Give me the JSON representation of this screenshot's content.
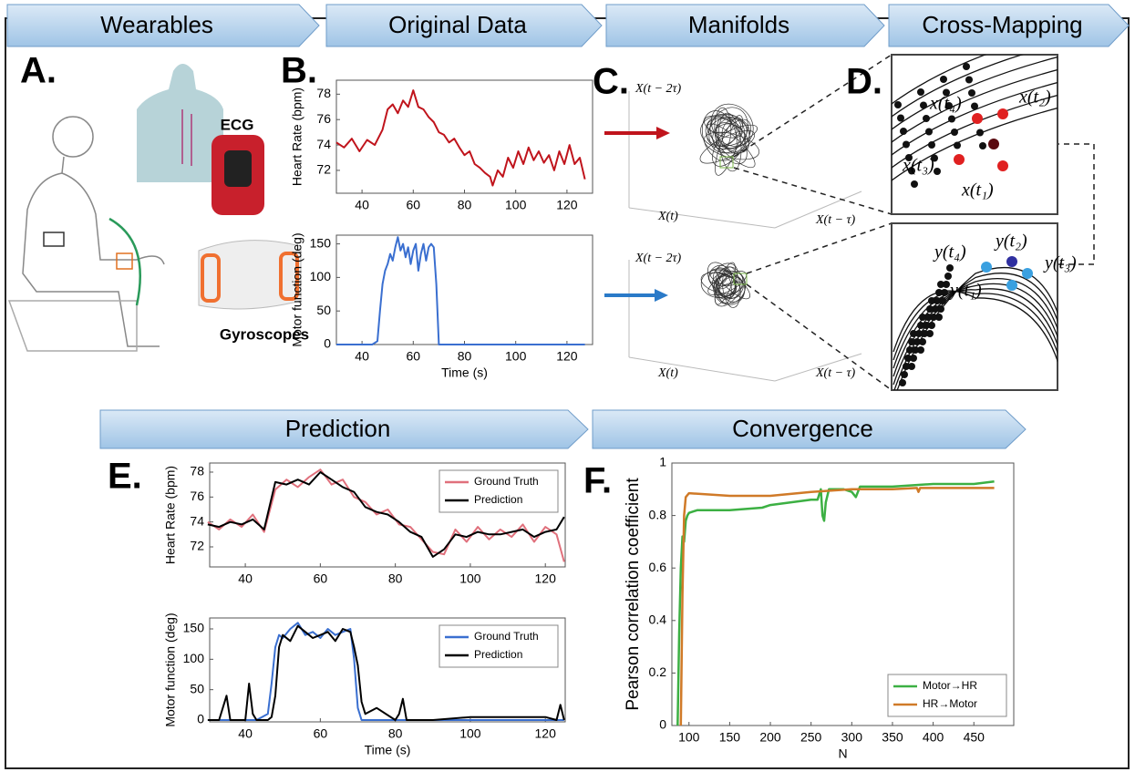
{
  "headers": [
    "Wearables",
    "Original Data",
    "Manifolds",
    "Cross-Mapping",
    "Prediction",
    "Convergence"
  ],
  "panel_labels": [
    "A.",
    "B.",
    "C.",
    "D.",
    "E.",
    "F."
  ],
  "wearables": {
    "ecg_label": "ECG",
    "gyro_label": "Gyroscopes"
  },
  "manifolds": {
    "axis_labels": [
      "X(t − 2τ)",
      "X(t)",
      "X(t − τ)",
      "X(t − 2τ)",
      "X(t)",
      "X(t − τ)"
    ]
  },
  "cross_mapping": {
    "x_labels": [
      "x(t₄)",
      "x(t₂)",
      "x(t₃)",
      "x(t₁)"
    ],
    "y_labels": [
      "y(t₄)",
      "y(t₂)",
      "y(t₃)",
      "y(t₁)"
    ]
  },
  "chart_data": [
    {
      "type": "line",
      "ylabel": "Heart Rate (bpm)",
      "x": [
        30,
        33,
        36,
        39,
        42,
        45,
        48,
        50,
        52,
        54,
        56,
        58,
        60,
        62,
        64,
        66,
        68,
        70,
        72,
        74,
        76,
        78,
        80,
        82,
        84,
        86,
        88,
        90,
        91,
        93,
        95,
        97,
        99,
        101,
        103,
        105,
        107,
        109,
        111,
        113,
        115,
        117,
        119,
        121,
        123,
        125,
        127
      ],
      "series": [
        {
          "color": "#c0141c",
          "values": [
            74.2,
            73.8,
            74.5,
            73.5,
            74.4,
            74.0,
            75.2,
            76.8,
            77.2,
            76.5,
            77.5,
            77.0,
            78.3,
            77.0,
            76.8,
            76.2,
            75.8,
            75.0,
            74.8,
            74.2,
            74.5,
            73.8,
            73.2,
            73.5,
            72.5,
            72.2,
            71.8,
            71.5,
            70.8,
            72.0,
            71.5,
            73.0,
            72.2,
            73.5,
            72.5,
            73.8,
            72.8,
            73.5,
            72.6,
            73.2,
            72.0,
            73.5,
            72.5,
            74.0,
            72.5,
            73.0,
            71.3
          ]
        }
      ],
      "xlim": [
        30,
        130
      ],
      "ylim": [
        70.2,
        79.1
      ],
      "xticks": [
        40,
        60,
        80,
        100,
        120
      ],
      "yticks": [
        72,
        74,
        76,
        78
      ]
    },
    {
      "type": "line",
      "ylabel": "Motor function (deg)",
      "xlabel": "Time (s)",
      "x": [
        30,
        44,
        46,
        47,
        48,
        49,
        50,
        51,
        52,
        53,
        54,
        55,
        56,
        57,
        58,
        59,
        60,
        61,
        62,
        63,
        64,
        65,
        66,
        67,
        68,
        69,
        70,
        127
      ],
      "series": [
        {
          "color": "#3a6fd0",
          "values": [
            0,
            0,
            5,
            50,
            90,
            110,
            120,
            135,
            125,
            145,
            160,
            140,
            150,
            130,
            145,
            120,
            140,
            150,
            110,
            135,
            150,
            125,
            145,
            150,
            145,
            90,
            0,
            0
          ]
        }
      ],
      "xlim": [
        30,
        130
      ],
      "ylim": [
        0,
        163
      ],
      "xticks": [
        40,
        60,
        80,
        100,
        120
      ],
      "yticks": [
        0,
        50,
        100,
        150
      ]
    },
    {
      "type": "line",
      "ylabel": "Heart Rate (bpm)",
      "legend": "upper right",
      "x": [
        30,
        33,
        36,
        39,
        42,
        45,
        48,
        51,
        54,
        57,
        60,
        63,
        66,
        69,
        72,
        75,
        78,
        81,
        84,
        87,
        90,
        93,
        96,
        99,
        102,
        105,
        108,
        111,
        114,
        117,
        120,
        123,
        125
      ],
      "series": [
        {
          "name": "Ground Truth",
          "color": "#e0707c",
          "values": [
            74.0,
            73.4,
            74.2,
            73.6,
            74.6,
            73.2,
            76.6,
            77.4,
            76.8,
            77.6,
            78.2,
            77.0,
            77.4,
            76.0,
            75.6,
            74.6,
            75.0,
            73.8,
            73.6,
            72.6,
            71.6,
            71.4,
            73.4,
            72.4,
            73.6,
            72.6,
            73.4,
            72.8,
            73.8,
            72.4,
            73.6,
            73.0,
            70.8
          ]
        },
        {
          "name": "Prediction",
          "color": "#000000",
          "values": [
            73.8,
            73.6,
            74.0,
            73.8,
            74.2,
            73.4,
            77.2,
            77.0,
            77.4,
            77.0,
            78.0,
            77.4,
            76.8,
            76.4,
            75.2,
            74.8,
            74.6,
            74.0,
            73.2,
            72.8,
            71.2,
            71.8,
            73.0,
            72.8,
            73.2,
            73.0,
            73.0,
            73.2,
            73.4,
            72.8,
            73.2,
            73.4,
            74.4
          ]
        }
      ],
      "xlim": [
        30.5,
        125.3
      ],
      "ylim": [
        70.39,
        78.73
      ],
      "xticks": [
        40,
        60,
        80,
        100,
        120
      ],
      "yticks": [
        72,
        74,
        76,
        78
      ]
    },
    {
      "type": "line",
      "ylabel": "Motor function (deg)",
      "xlabel": "Time (s)",
      "legend": "upper right",
      "x": [
        30,
        33,
        34,
        35,
        36,
        40,
        41,
        42,
        43,
        46,
        47,
        48,
        49,
        50,
        52,
        54,
        56,
        58,
        60,
        62,
        64,
        66,
        68,
        69,
        70,
        71,
        72,
        75,
        80,
        81,
        82,
        83,
        90,
        100,
        110,
        120,
        123,
        124,
        125
      ],
      "series": [
        {
          "name": "Ground Truth",
          "color": "#3a6fd0",
          "values": [
            0,
            0,
            0,
            0,
            0,
            0,
            0,
            0,
            0,
            10,
            60,
            120,
            140,
            135,
            150,
            160,
            140,
            145,
            135,
            150,
            140,
            145,
            150,
            100,
            20,
            0,
            0,
            0,
            0,
            0,
            0,
            0,
            0,
            0,
            0,
            0,
            0,
            0,
            0
          ]
        },
        {
          "name": "Prediction",
          "color": "#000000",
          "values": [
            0,
            0,
            20,
            40,
            0,
            0,
            60,
            10,
            0,
            0,
            5,
            40,
            120,
            140,
            130,
            155,
            145,
            135,
            140,
            145,
            130,
            150,
            145,
            120,
            90,
            30,
            10,
            20,
            0,
            10,
            35,
            0,
            0,
            5,
            5,
            5,
            0,
            25,
            0
          ]
        }
      ],
      "xlim": [
        30.5,
        125.3
      ],
      "ylim": [
        -3,
        168
      ],
      "xticks": [
        40,
        60,
        80,
        100,
        120
      ],
      "yticks": [
        0,
        50,
        100,
        150
      ]
    },
    {
      "type": "line",
      "ylabel": "Pearson correlation coefficient",
      "xlabel": "N",
      "legend": "lower right",
      "series": [
        {
          "name": "Motor→HR",
          "color": "#3cb043",
          "x": [
            86,
            88,
            90,
            92,
            94,
            96,
            98,
            100,
            110,
            150,
            190,
            200,
            250,
            258,
            262,
            264,
            266,
            268,
            272,
            290,
            300,
            305,
            310,
            350,
            400,
            450,
            475
          ],
          "values": [
            0,
            0.35,
            0.6,
            0.72,
            0.7,
            0.78,
            0.8,
            0.81,
            0.82,
            0.82,
            0.83,
            0.84,
            0.86,
            0.86,
            0.9,
            0.8,
            0.78,
            0.85,
            0.9,
            0.9,
            0.89,
            0.87,
            0.91,
            0.91,
            0.92,
            0.92,
            0.93
          ]
        },
        {
          "name": "HR→Motor",
          "color": "#d07a28",
          "x": [
            90,
            92,
            94,
            96,
            100,
            150,
            200,
            250,
            300,
            350,
            380,
            382,
            384,
            400,
            475
          ],
          "values": [
            0,
            0.5,
            0.8,
            0.87,
            0.885,
            0.875,
            0.875,
            0.89,
            0.9,
            0.9,
            0.905,
            0.89,
            0.905,
            0.905,
            0.905
          ]
        }
      ],
      "xlim": [
        79,
        499
      ],
      "ylim": [
        0,
        1
      ],
      "xticks": [
        100,
        150,
        200,
        250,
        300,
        350,
        400,
        450
      ],
      "yticks": [
        0,
        0.2,
        0.4,
        0.6,
        0.8,
        1
      ]
    }
  ]
}
